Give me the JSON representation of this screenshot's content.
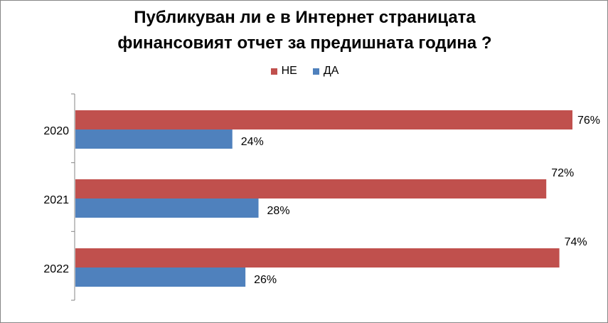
{
  "chart_data": {
    "type": "bar",
    "orientation": "horizontal",
    "title_lines": [
      "Публикуван ли е в Интернет страницата",
      "финансовият отчет за предишната година ?"
    ],
    "categories": [
      "2020",
      "2021",
      "2022"
    ],
    "series": [
      {
        "name": "НЕ",
        "color": "#C0504D",
        "values": [
          76,
          72,
          74
        ],
        "labels": [
          "76%",
          "72%",
          "74%"
        ]
      },
      {
        "name": "ДА",
        "color": "#4F81BD",
        "values": [
          24,
          28,
          26
        ],
        "labels": [
          "24%",
          "28%",
          "26%"
        ]
      }
    ],
    "value_unit": "%",
    "xlim": [
      0,
      76
    ],
    "legend_position": "top",
    "grid": false
  }
}
